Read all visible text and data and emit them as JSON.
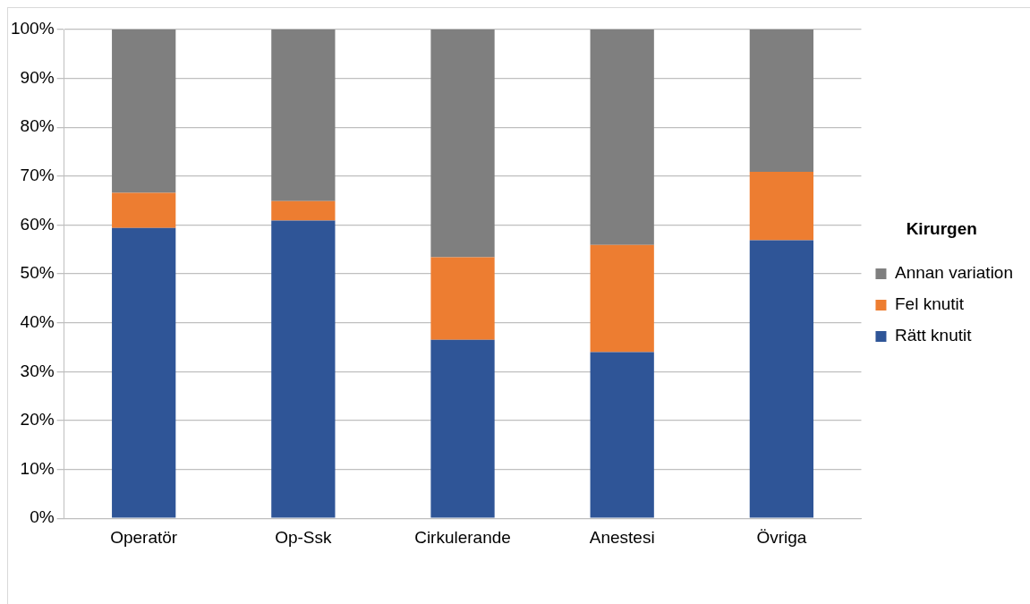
{
  "chart_data": {
    "type": "bar",
    "stacked": true,
    "categories": [
      "Operatör",
      "Op-Ssk",
      "Cirkulerande",
      "Anestesi",
      "Övriga"
    ],
    "series": [
      {
        "name": "Rätt knutit",
        "color": "#2f5597",
        "values": [
          59.4,
          60.9,
          36.5,
          34.0,
          56.9
        ]
      },
      {
        "name": "Fel knutit",
        "color": "#ed7d31",
        "values": [
          7.2,
          4.0,
          16.9,
          21.9,
          14.0
        ]
      },
      {
        "name": "Annan variation",
        "color": "#7f7f7f",
        "values": [
          33.4,
          35.1,
          46.6,
          44.1,
          29.1
        ]
      }
    ],
    "legend_title": "Kirurgen",
    "legend": "right",
    "grid": "y",
    "ylim": [
      0,
      100
    ],
    "yticks": [
      {
        "value": 0,
        "label": "0%"
      },
      {
        "value": 10,
        "label": "10%"
      },
      {
        "value": 20,
        "label": "20%"
      },
      {
        "value": 30,
        "label": "30%"
      },
      {
        "value": 40,
        "label": "40%"
      },
      {
        "value": 50,
        "label": "50%"
      },
      {
        "value": 60,
        "label": "60%"
      },
      {
        "value": 70,
        "label": "70%"
      },
      {
        "value": 80,
        "label": "80%"
      },
      {
        "value": 90,
        "label": "90%"
      },
      {
        "value": 100,
        "label": "100%"
      }
    ]
  }
}
